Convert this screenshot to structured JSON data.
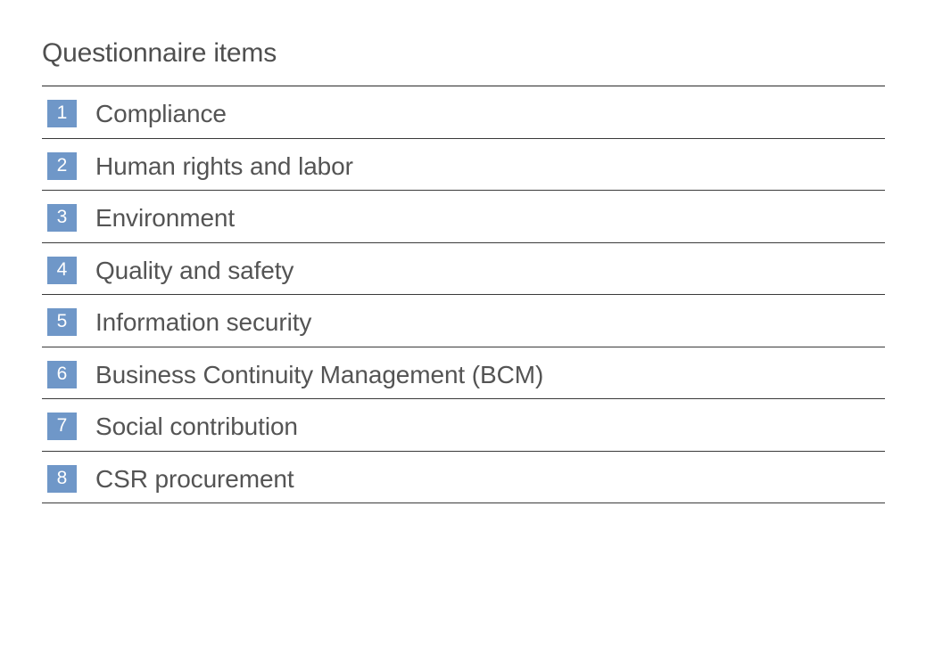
{
  "header": {
    "title": "Questionnaire items"
  },
  "colors": {
    "badge": "#6f97c8",
    "text": "#545454",
    "rule": "#2a2a2a"
  },
  "items": [
    {
      "number": "1",
      "label": "Compliance"
    },
    {
      "number": "2",
      "label": "Human rights and labor"
    },
    {
      "number": "3",
      "label": "Environment"
    },
    {
      "number": "4",
      "label": "Quality and safety"
    },
    {
      "number": "5",
      "label": "Information security"
    },
    {
      "number": "6",
      "label": "Business Continuity Management (BCM)"
    },
    {
      "number": "7",
      "label": "Social contribution"
    },
    {
      "number": "8",
      "label": "CSR procurement"
    }
  ]
}
